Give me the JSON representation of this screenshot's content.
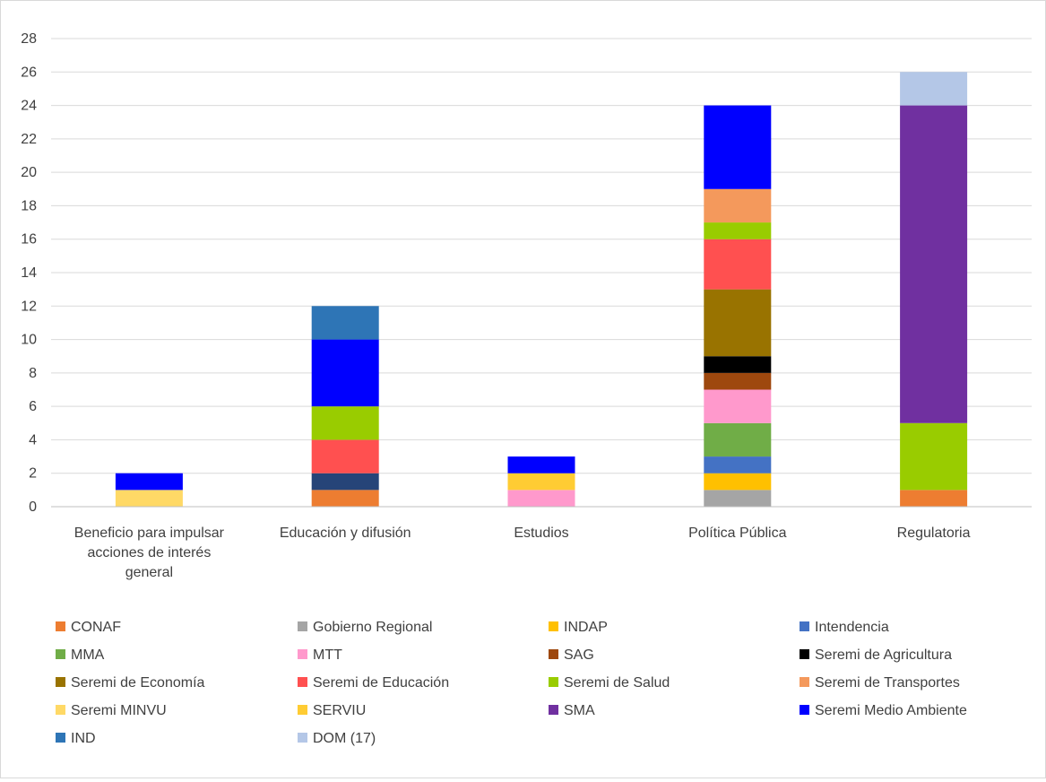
{
  "chart_data": {
    "type": "bar",
    "stacked": true,
    "title": "",
    "xlabel": "",
    "ylabel": "",
    "ylim": [
      0,
      28
    ],
    "yticks": [
      0,
      2,
      4,
      6,
      8,
      10,
      12,
      14,
      16,
      18,
      20,
      22,
      24,
      26,
      28
    ],
    "grid": true,
    "legend_position": "bottom",
    "categories": [
      "Beneficio para impulsar acciones de interés general",
      "Educación y difusión",
      "Estudios",
      "Política Pública",
      "Regulatoria"
    ],
    "category_label_lines": [
      [
        "Beneficio para impulsar",
        "acciones de interés",
        "general"
      ],
      [
        "Educación y difusión"
      ],
      [
        "Estudios"
      ],
      [
        "Política Pública"
      ],
      [
        "Regulatoria"
      ]
    ],
    "series": [
      {
        "name": "CONAF",
        "color": "#ED7D31",
        "values": [
          0,
          1,
          0,
          0,
          1
        ]
      },
      {
        "name": "Gobierno Regional",
        "color": "#A5A5A5",
        "values": [
          0,
          0,
          0,
          1,
          0
        ]
      },
      {
        "name": "INDAP",
        "color": "#FFC000",
        "values": [
          0,
          0,
          0,
          1,
          0
        ]
      },
      {
        "name": "Intendencia",
        "color": "#4472C4",
        "values": [
          0,
          0,
          0,
          1,
          0
        ]
      },
      {
        "name": "MMA",
        "color": "#70AD47",
        "values": [
          0,
          0,
          0,
          2,
          0
        ]
      },
      {
        "name": "MTT",
        "color": "#FF99CC",
        "values": [
          0,
          0,
          1,
          2,
          0
        ]
      },
      {
        "name": "SAG",
        "color": "#9E480E",
        "values": [
          0,
          0,
          0,
          1,
          0
        ]
      },
      {
        "name": "Seremi de Agricultura",
        "color": "#000000",
        "values": [
          0,
          0,
          0,
          1,
          0
        ]
      },
      {
        "name": "Seremi de Economía",
        "color": "#997300",
        "values": [
          0,
          0,
          0,
          4,
          0
        ]
      },
      {
        "name": "Seremi de Educación",
        "color": "#FF5050",
        "values": [
          0,
          2,
          0,
          3,
          0
        ]
      },
      {
        "name": "Seremi de Salud",
        "color": "#99CC00",
        "values": [
          0,
          2,
          0,
          1,
          4
        ]
      },
      {
        "name": "Seremi de Transportes",
        "color": "#F4995C",
        "values": [
          0,
          0,
          0,
          2,
          0
        ]
      },
      {
        "name": "Seremi MINVU",
        "color": "#FFD966",
        "values": [
          1,
          0,
          0,
          0,
          0
        ]
      },
      {
        "name": "SERVIU",
        "color": "#FFCC33",
        "values": [
          0,
          0,
          1,
          0,
          0
        ]
      },
      {
        "name": "SMA",
        "color": "#7030A0",
        "values": [
          0,
          0,
          0,
          0,
          19
        ]
      },
      {
        "name": "Seremi Medio Ambiente",
        "color": "#0000FF",
        "values": [
          1,
          4,
          1,
          5,
          0
        ]
      },
      {
        "name": "IND",
        "color": "#2E75B6",
        "values": [
          0,
          2,
          0,
          0,
          0
        ]
      },
      {
        "name": "DOM (17)",
        "color": "#B4C7E7",
        "values": [
          0,
          0,
          0,
          0,
          2
        ]
      }
    ],
    "segment_order": [
      [
        "Seremi MINVU",
        "Seremi Medio Ambiente"
      ],
      [
        "CONAF",
        "IND_DARK",
        "Seremi de Educación",
        "Seremi de Salud",
        "Seremi Medio Ambiente",
        "IND"
      ],
      [
        "MTT",
        "SERVIU",
        "Seremi Medio Ambiente"
      ],
      [
        "Gobierno Regional",
        "INDAP",
        "Intendencia",
        "MMA",
        "MTT",
        "SAG",
        "Seremi de Agricultura",
        "Seremi de Economía",
        "Seremi de Educación",
        "Seremi de Salud",
        "Seremi de Transportes",
        "Seremi Medio Ambiente"
      ],
      [
        "CONAF",
        "Seremi de Salud",
        "SMA",
        "DOM (17)"
      ]
    ],
    "extra_segment_colors": {
      "IND_DARK": "#264478"
    },
    "extra_segment_values": {
      "IND_DARK": [
        0,
        1,
        0,
        0,
        0
      ]
    }
  }
}
